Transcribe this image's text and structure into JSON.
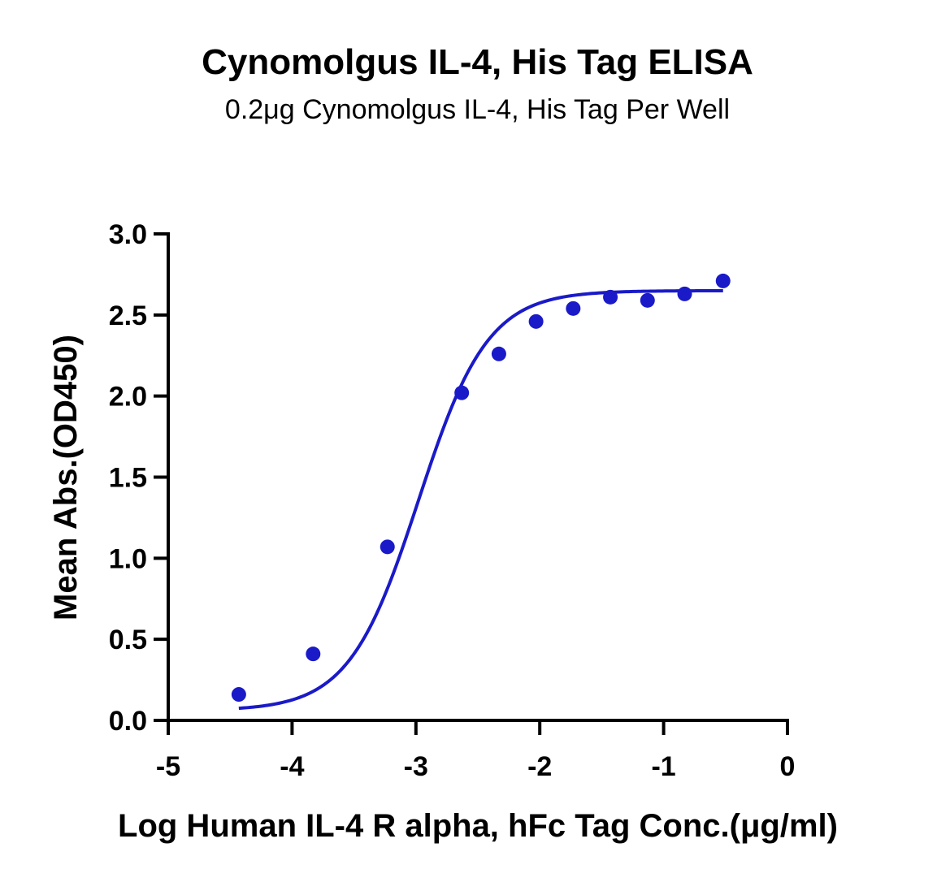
{
  "chart_data": {
    "type": "scatter",
    "title": "Cynomolgus IL-4, His Tag ELISA",
    "subtitle": "0.2μg Cynomolgus IL-4, His Tag Per Well",
    "xlabel": "Log Human IL-4 R alpha, hFc Tag Conc.(μg/ml)",
    "ylabel": "Mean Abs.(OD450)",
    "xlim": [
      -5,
      0
    ],
    "ylim": [
      0,
      3.0
    ],
    "x_ticks": [
      "-5",
      "-4",
      "-3",
      "-2",
      "-1",
      "0"
    ],
    "y_ticks": [
      "0.0",
      "0.5",
      "1.0",
      "1.5",
      "2.0",
      "2.5",
      "3.0"
    ],
    "grid": false,
    "color": "#1a1ac8",
    "series": [
      {
        "x": [
          -4.43,
          -3.83,
          -3.23,
          -2.63,
          -2.33,
          -2.03,
          -1.73,
          -1.43,
          -1.13,
          -0.83,
          -0.52
        ],
        "y": [
          0.16,
          0.41,
          1.07,
          2.02,
          2.26,
          2.46,
          2.54,
          2.61,
          2.59,
          2.63,
          2.71
        ]
      }
    ],
    "fit": {
      "model": "4PL",
      "bottom": 0.06,
      "top": 2.65,
      "logEC50": -2.98,
      "hill": 1.55,
      "x_range": [
        -4.43,
        -0.52
      ]
    }
  }
}
